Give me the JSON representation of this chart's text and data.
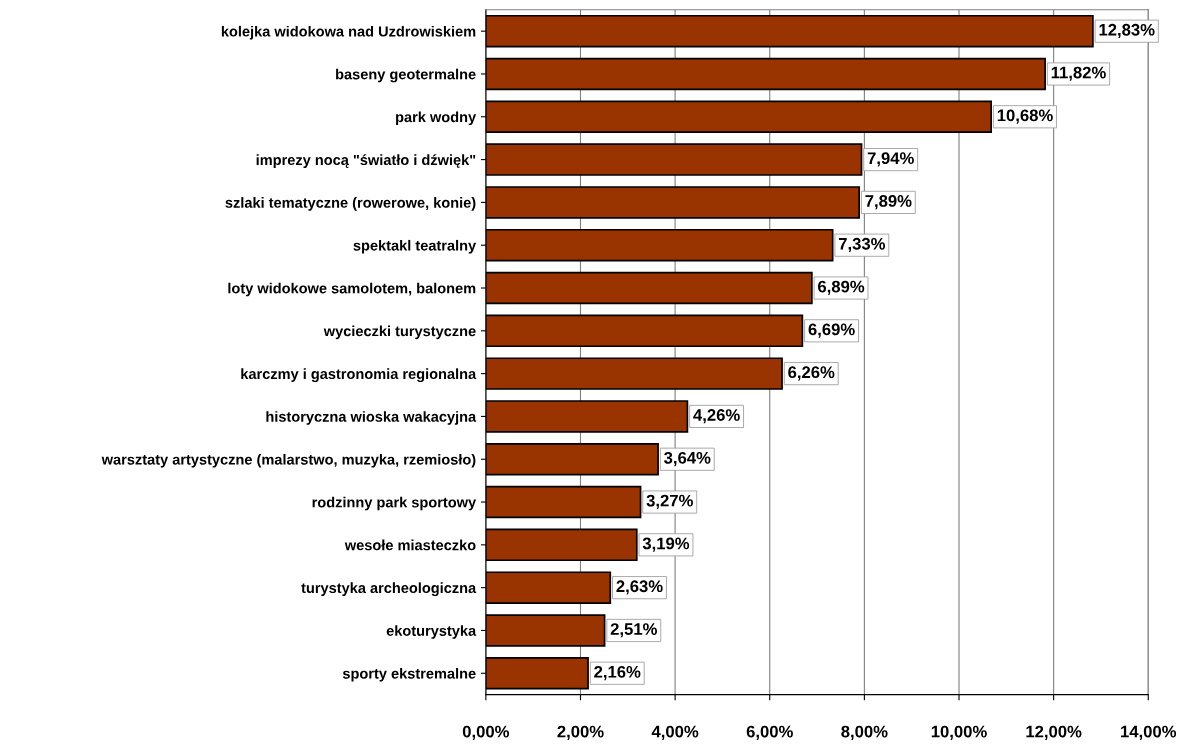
{
  "chart_data": {
    "type": "bar",
    "orientation": "horizontal",
    "categories": [
      "kolejka widokowa nad Uzdrowiskiem",
      "baseny geotermalne",
      "park wodny",
      "imprezy nocą \"światło i dźwięk\"",
      "szlaki tematyczne (rowerowe, konie)",
      "spektakl teatralny",
      "loty widokowe samolotem, balonem",
      "wycieczki turystyczne",
      "karczmy i gastronomia regionalna",
      "historyczna wioska wakacyjna",
      "warsztaty artystyczne (malarstwo, muzyka, rzemiosło)",
      "rodzinny park sportowy",
      "wesołe miasteczko",
      "turystyka archeologiczna",
      "ekoturystyka",
      "sporty ekstremalne"
    ],
    "values": [
      12.83,
      11.82,
      10.68,
      7.94,
      7.89,
      7.33,
      6.89,
      6.69,
      6.26,
      4.26,
      3.64,
      3.27,
      3.19,
      2.63,
      2.51,
      2.16
    ],
    "value_labels": [
      "12,83%",
      "11,82%",
      "10,68%",
      "7,94%",
      "7,89%",
      "7,33%",
      "6,89%",
      "6,69%",
      "6,26%",
      "4,26%",
      "3,64%",
      "3,27%",
      "3,19%",
      "2,63%",
      "2,51%",
      "2,16%"
    ],
    "color": "#993300",
    "xlim": [
      0,
      14
    ],
    "xticks": [
      {
        "value": 0,
        "label": "0,00%"
      },
      {
        "value": 2,
        "label": "2,00%"
      },
      {
        "value": 4,
        "label": "4,00%"
      },
      {
        "value": 6,
        "label": "6,00%"
      },
      {
        "value": 8,
        "label": "8,00%"
      },
      {
        "value": 10,
        "label": "10,00%"
      },
      {
        "value": 12,
        "label": "12,00%"
      },
      {
        "value": 14,
        "label": "14,00%"
      }
    ],
    "grid": "x"
  }
}
